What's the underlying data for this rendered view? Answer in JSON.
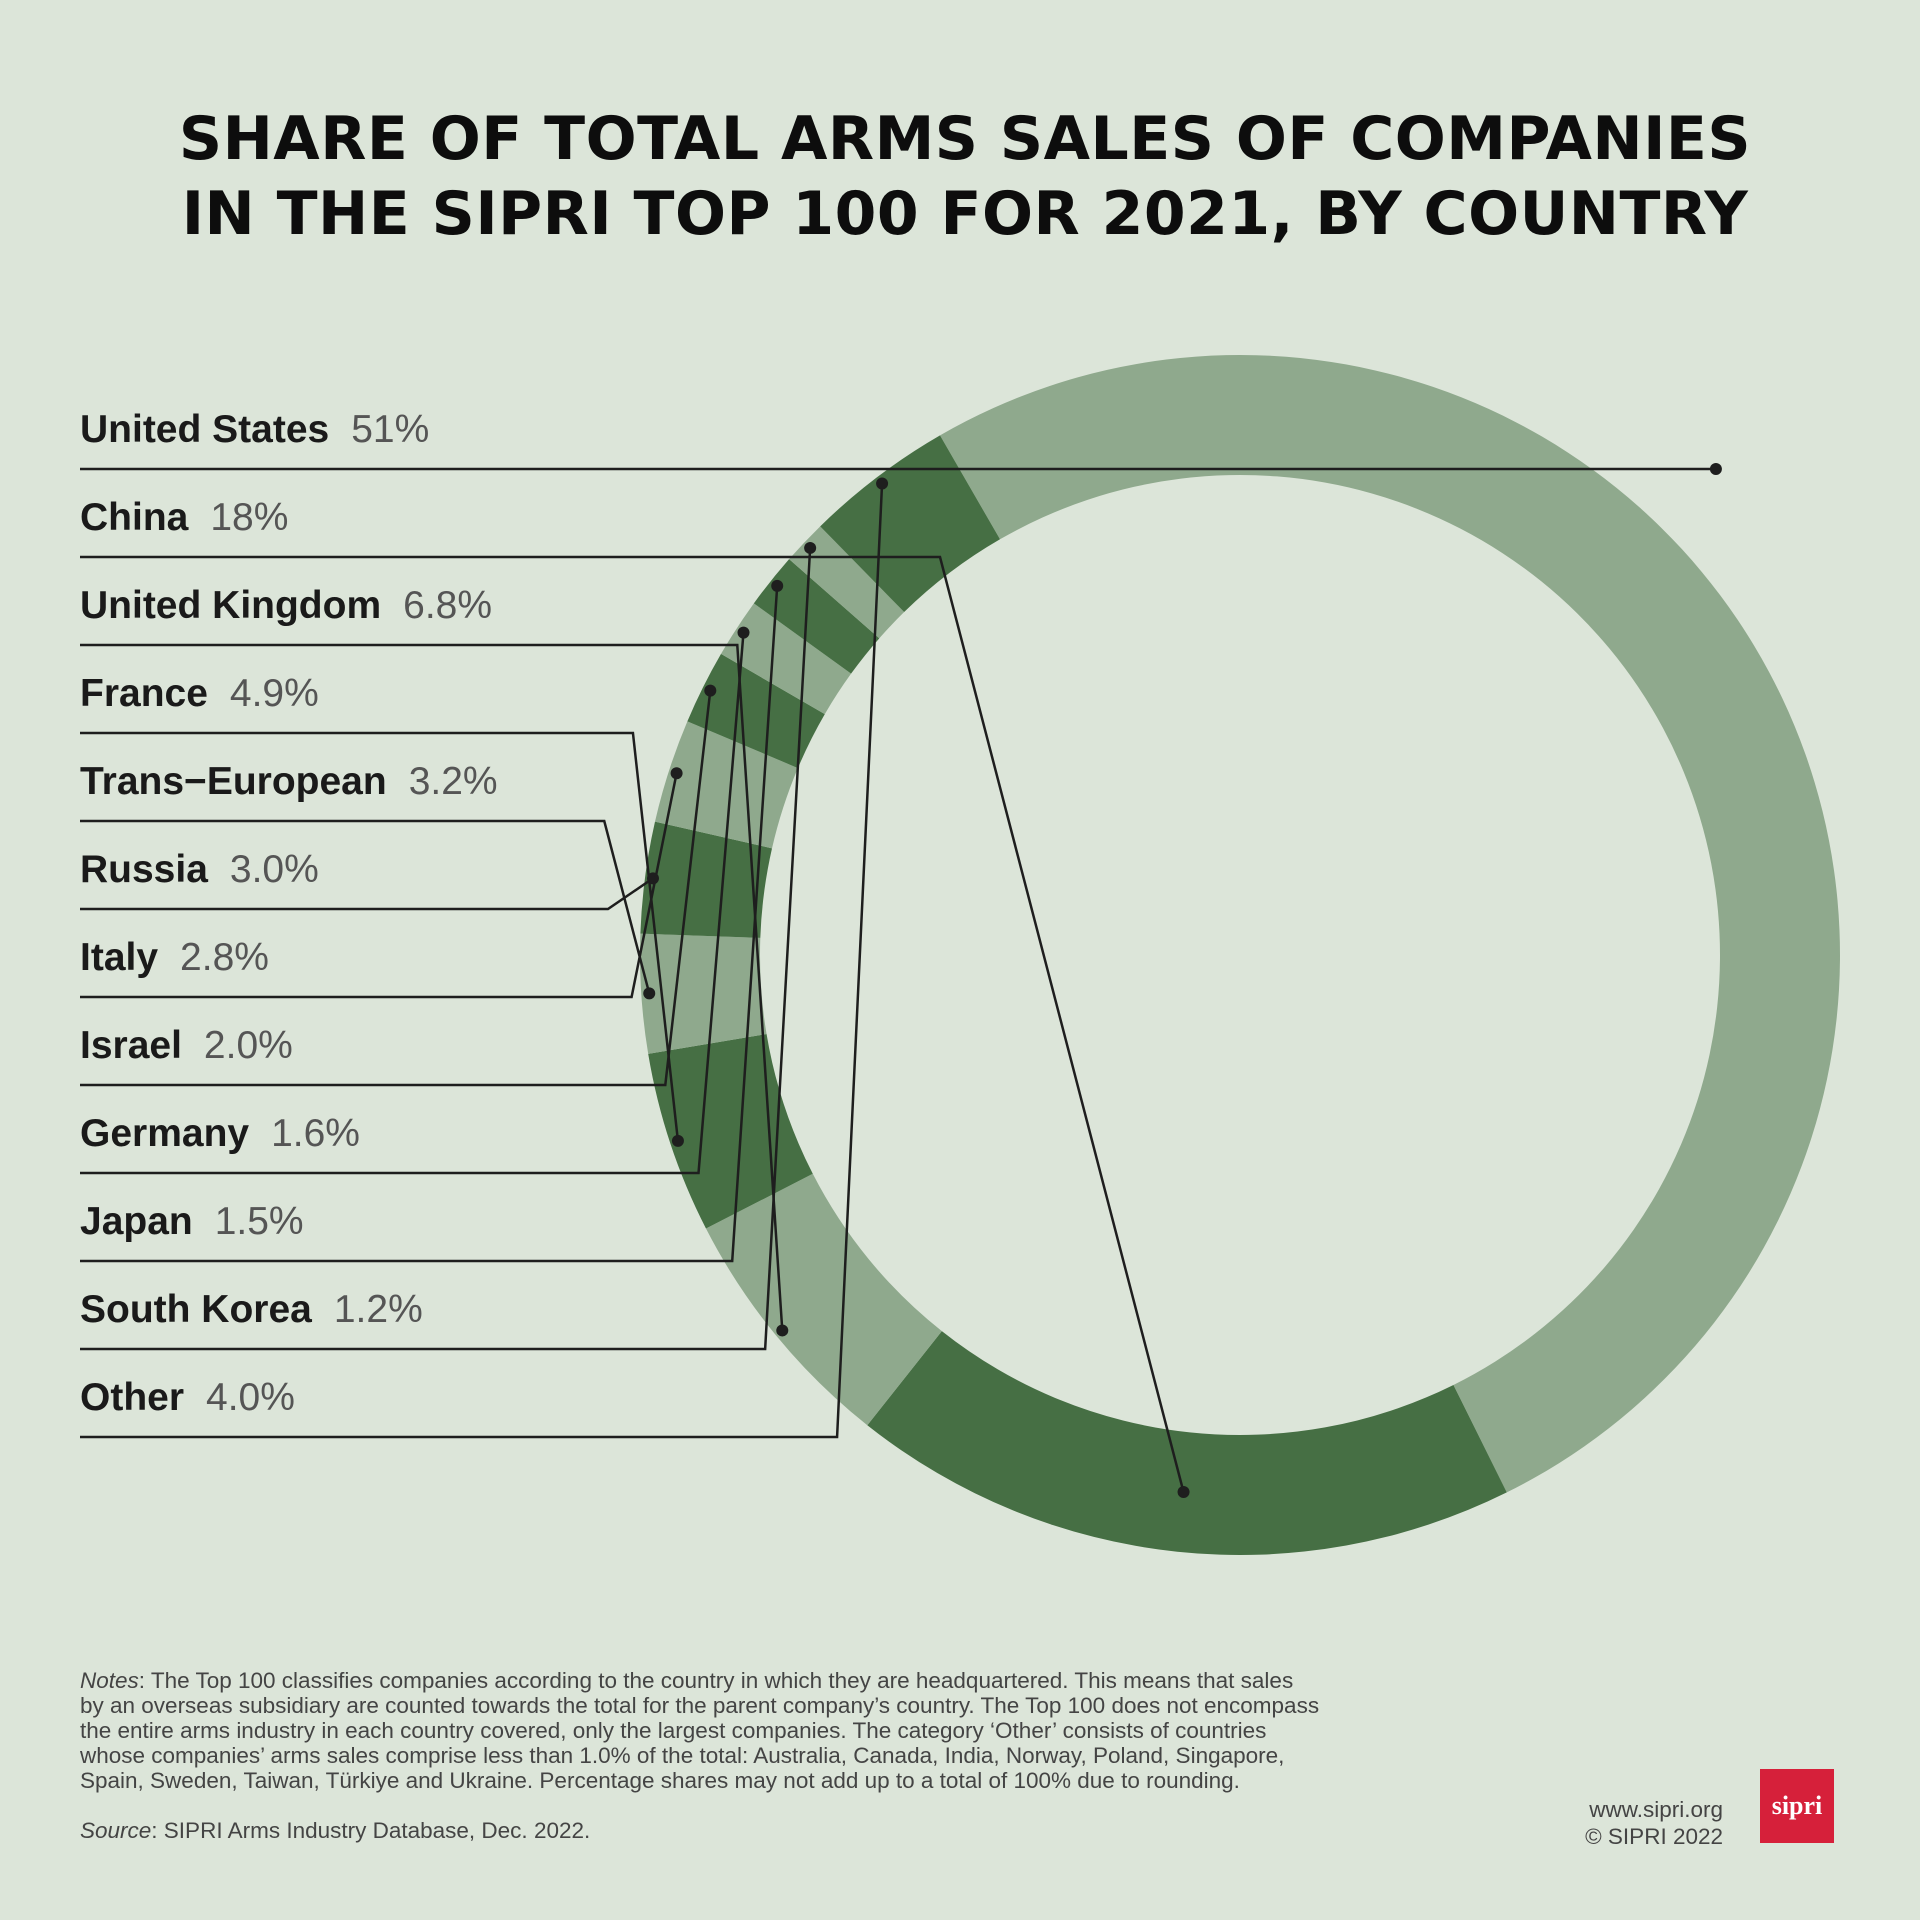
{
  "title_lines": [
    "SHARE OF TOTAL ARMS SALES OF COMPANIES",
    "IN THE SIPRI TOP 100 FOR 2021, BY COUNTRY"
  ],
  "chart_data": {
    "type": "pie",
    "variant": "donut",
    "title": "SHARE OF TOTAL ARMS SALES OF COMPANIES IN THE SIPRI TOP 100 FOR 2021, BY COUNTRY",
    "labels_position": "left",
    "slices": [
      {
        "label": "United States",
        "value_label": "51%",
        "value": 51
      },
      {
        "label": "China",
        "value_label": "18%",
        "value": 18
      },
      {
        "label": "United Kingdom",
        "value_label": "6.8%",
        "value": 6.8
      },
      {
        "label": "France",
        "value_label": "4.9%",
        "value": 4.9
      },
      {
        "label": "Trans−European",
        "value_label": "3.2%",
        "value": 3.2
      },
      {
        "label": "Russia",
        "value_label": "3.0%",
        "value": 3.0
      },
      {
        "label": "Italy",
        "value_label": "2.8%",
        "value": 2.8
      },
      {
        "label": "Israel",
        "value_label": "2.0%",
        "value": 2.0
      },
      {
        "label": "Germany",
        "value_label": "1.6%",
        "value": 1.6
      },
      {
        "label": "Japan",
        "value_label": "1.5%",
        "value": 1.5
      },
      {
        "label": "South Korea",
        "value_label": "1.2%",
        "value": 1.2
      },
      {
        "label": "Other",
        "value_label": "4.0%",
        "value": 4.0
      }
    ],
    "colors": {
      "dark": "#466f44",
      "light": "#8fa98d",
      "leader": "#1e1e1e",
      "label": "#1a1a1a",
      "value": "#555555"
    }
  },
  "notes": {
    "label": "Notes",
    "lines": [
      ": The Top 100 classifies companies according to the country in which they are headquartered. This means that sales",
      "by an overseas subsidiary are counted towards the total for the parent company’s country. The Top 100 does not encompass",
      "the entire arms industry in each country covered, only the largest companies. The category ‘Other’ consists of countries",
      "whose companies’ arms sales comprise less than 1.0% of the total: Australia, Canada, India, Norway, Poland, Singapore,",
      "Spain, Sweden, Taiwan, Türkiye and Ukraine. Percentage shares may not add up to a total of 100% due to rounding."
    ]
  },
  "source": {
    "label": "Source",
    "text": ": SIPRI Arms Industry Database, Dec. 2022."
  },
  "footer": {
    "website": "www.sipri.org",
    "copyright": "© SIPRI 2022",
    "logo_text": "sipri"
  }
}
